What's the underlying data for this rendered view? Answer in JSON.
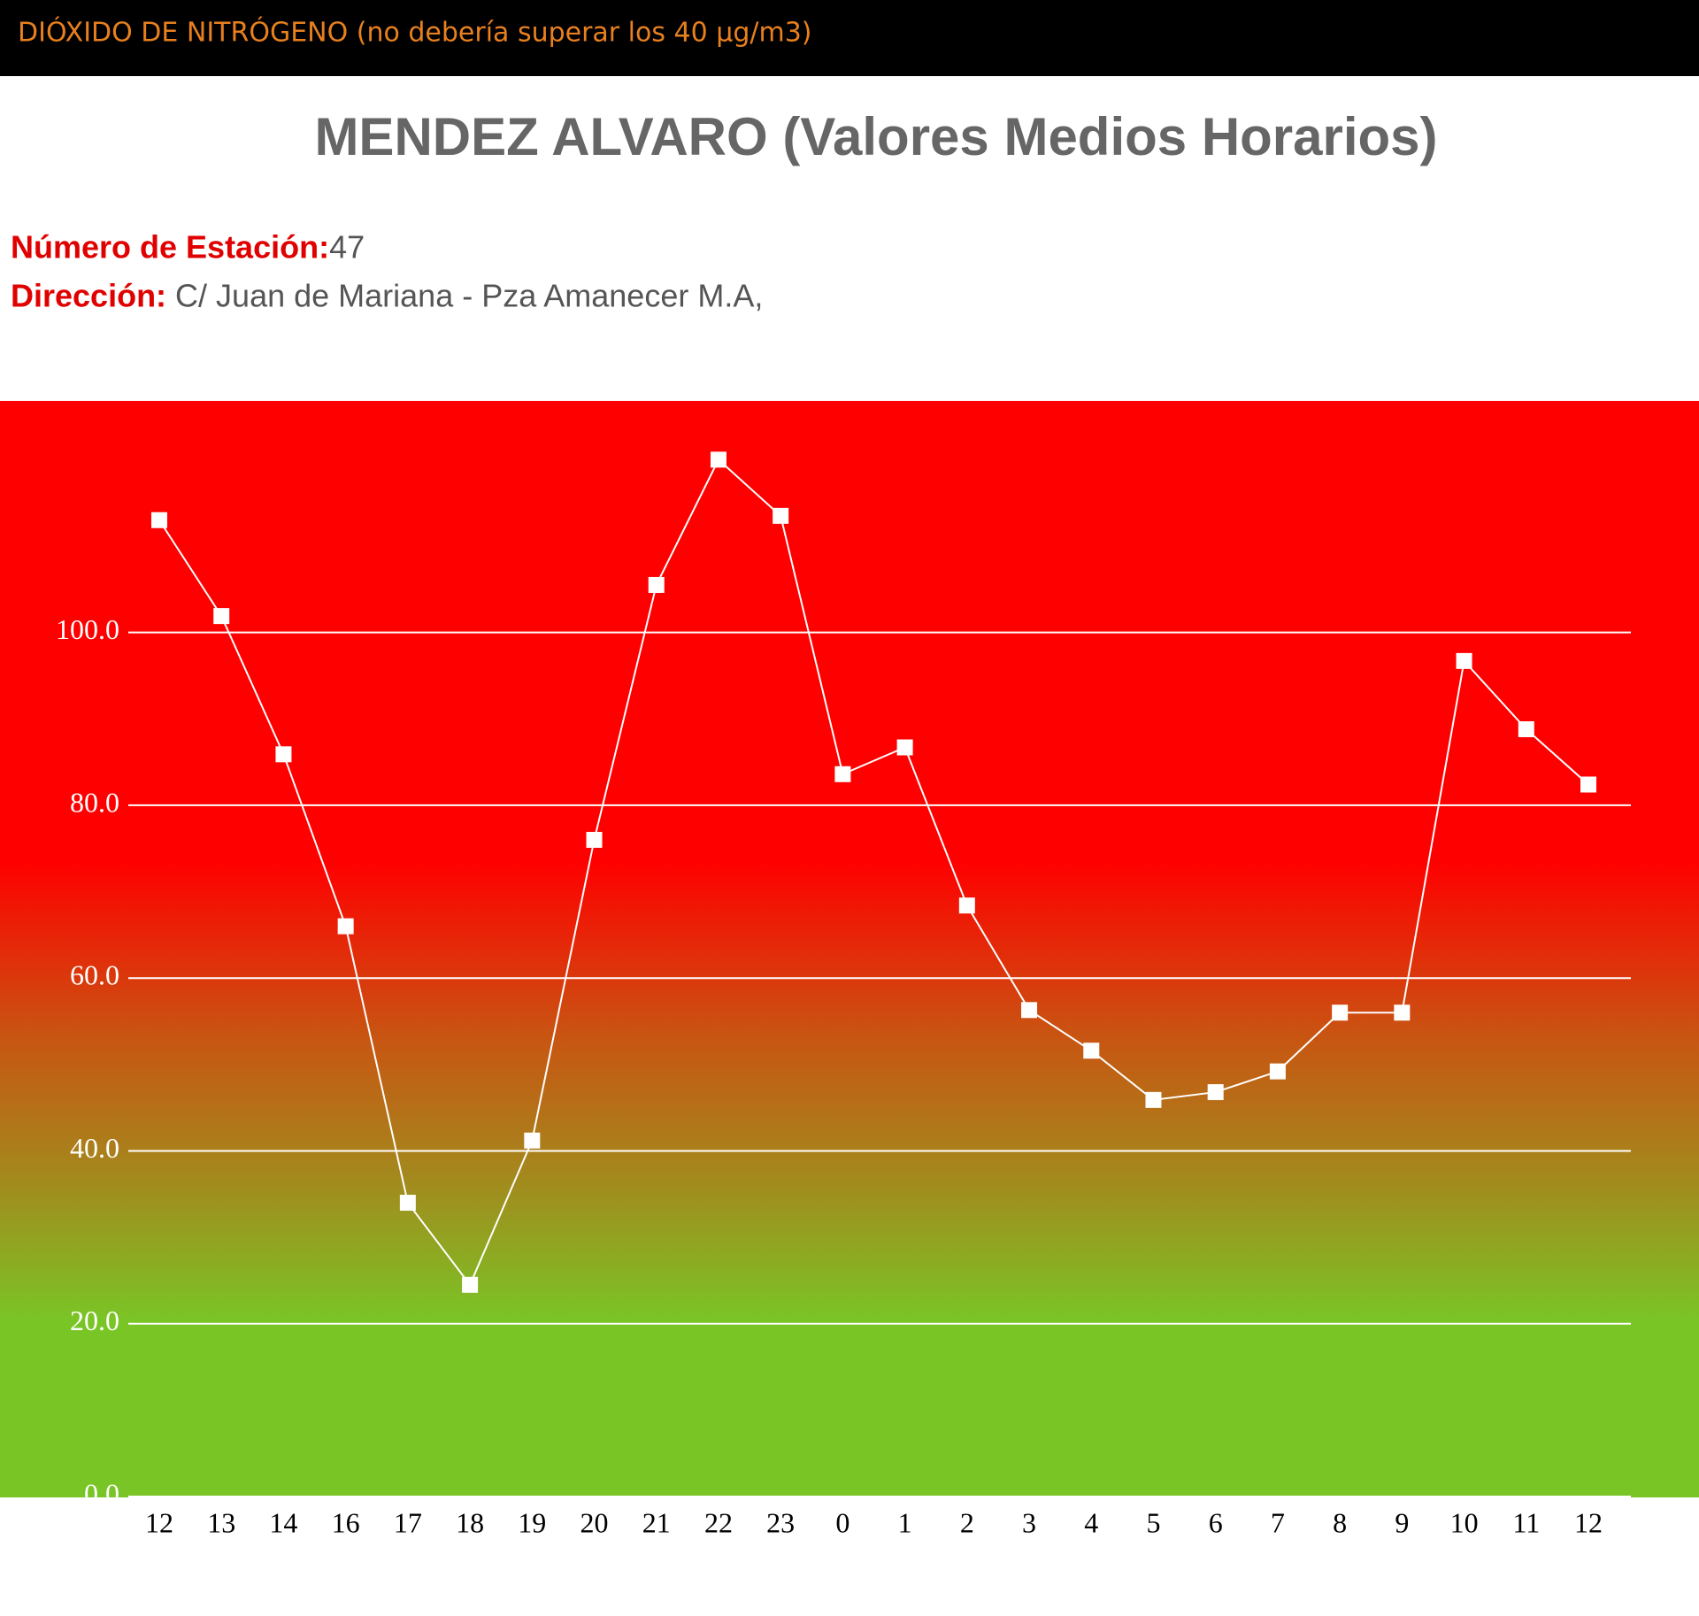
{
  "header": {
    "text": "DIÓXIDO DE NITRÓGENO (no debería superar los 40 µg/m3)"
  },
  "station": {
    "label": "Número de Estación:",
    "value": "47"
  },
  "address": {
    "label": "Dirección:",
    "value": "C/ Juan de Mariana - Pza Amanecer M.A,"
  },
  "chart_data": {
    "type": "line",
    "title": "MENDEZ ALVARO (Valores Medios Horarios)",
    "categories": [
      "12",
      "13",
      "14",
      "16",
      "17",
      "18",
      "19",
      "20",
      "21",
      "22",
      "23",
      "0",
      "1",
      "2",
      "3",
      "4",
      "5",
      "6",
      "7",
      "8",
      "9",
      "10",
      "11",
      "12"
    ],
    "series": [
      {
        "color": "#ffffff",
        "values": [
          113.0,
          101.9,
          85.9,
          66.0,
          34.0,
          24.5,
          41.2,
          76.0,
          105.5,
          120.0,
          113.5,
          83.6,
          86.7,
          68.4,
          56.3,
          51.6,
          45.9,
          46.8,
          49.2,
          56.0,
          56.0,
          96.7,
          88.8,
          82.4
        ]
      }
    ],
    "ylim": [
      0,
      126.8
    ],
    "yticks": [
      {
        "value": 0,
        "label": "0.0"
      },
      {
        "value": 20,
        "label": "20.0"
      },
      {
        "value": 40,
        "label": "40.0"
      },
      {
        "value": 60,
        "label": "60.0"
      },
      {
        "value": 80,
        "label": "80.0"
      },
      {
        "value": 100,
        "label": "100.0"
      }
    ],
    "grid": true
  }
}
